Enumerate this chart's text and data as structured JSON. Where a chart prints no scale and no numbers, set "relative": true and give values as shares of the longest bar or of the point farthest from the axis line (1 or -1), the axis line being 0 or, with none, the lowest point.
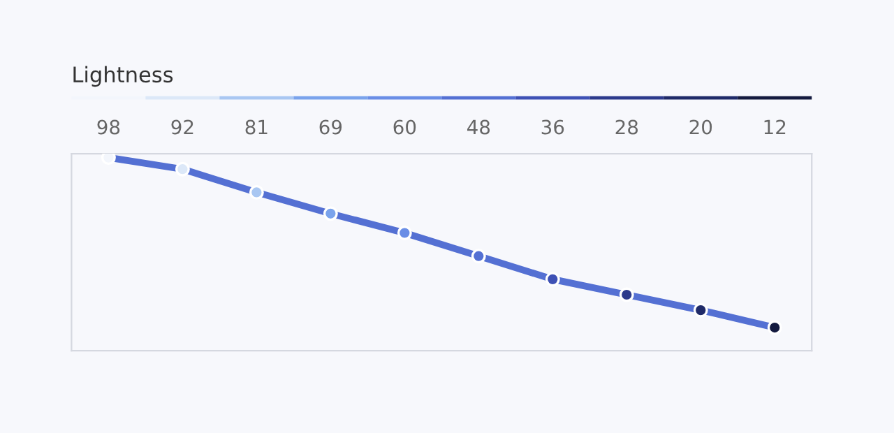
{
  "chart_data": {
    "type": "line",
    "title": "Lightness",
    "relative": true,
    "categories": [
      "98",
      "92",
      "81",
      "69",
      "60",
      "48",
      "36",
      "28",
      "20",
      "12"
    ],
    "series": [
      {
        "color": "#5470d3",
        "values": [
          1,
          0.94,
          0.82,
          0.71,
          0.61,
          0.49,
          0.37,
          0.29,
          0.21,
          0.12
        ]
      }
    ],
    "colors": [
      "#f3f6fc",
      "#dce8f8",
      "#a9c7f2",
      "#7aa3ec",
      "#6a8ee6",
      "#5470d3",
      "#3e51b5",
      "#2c3a8c",
      "#1f2a68",
      "#141a3f"
    ],
    "marker": "circle",
    "grid": false,
    "legend": false
  }
}
